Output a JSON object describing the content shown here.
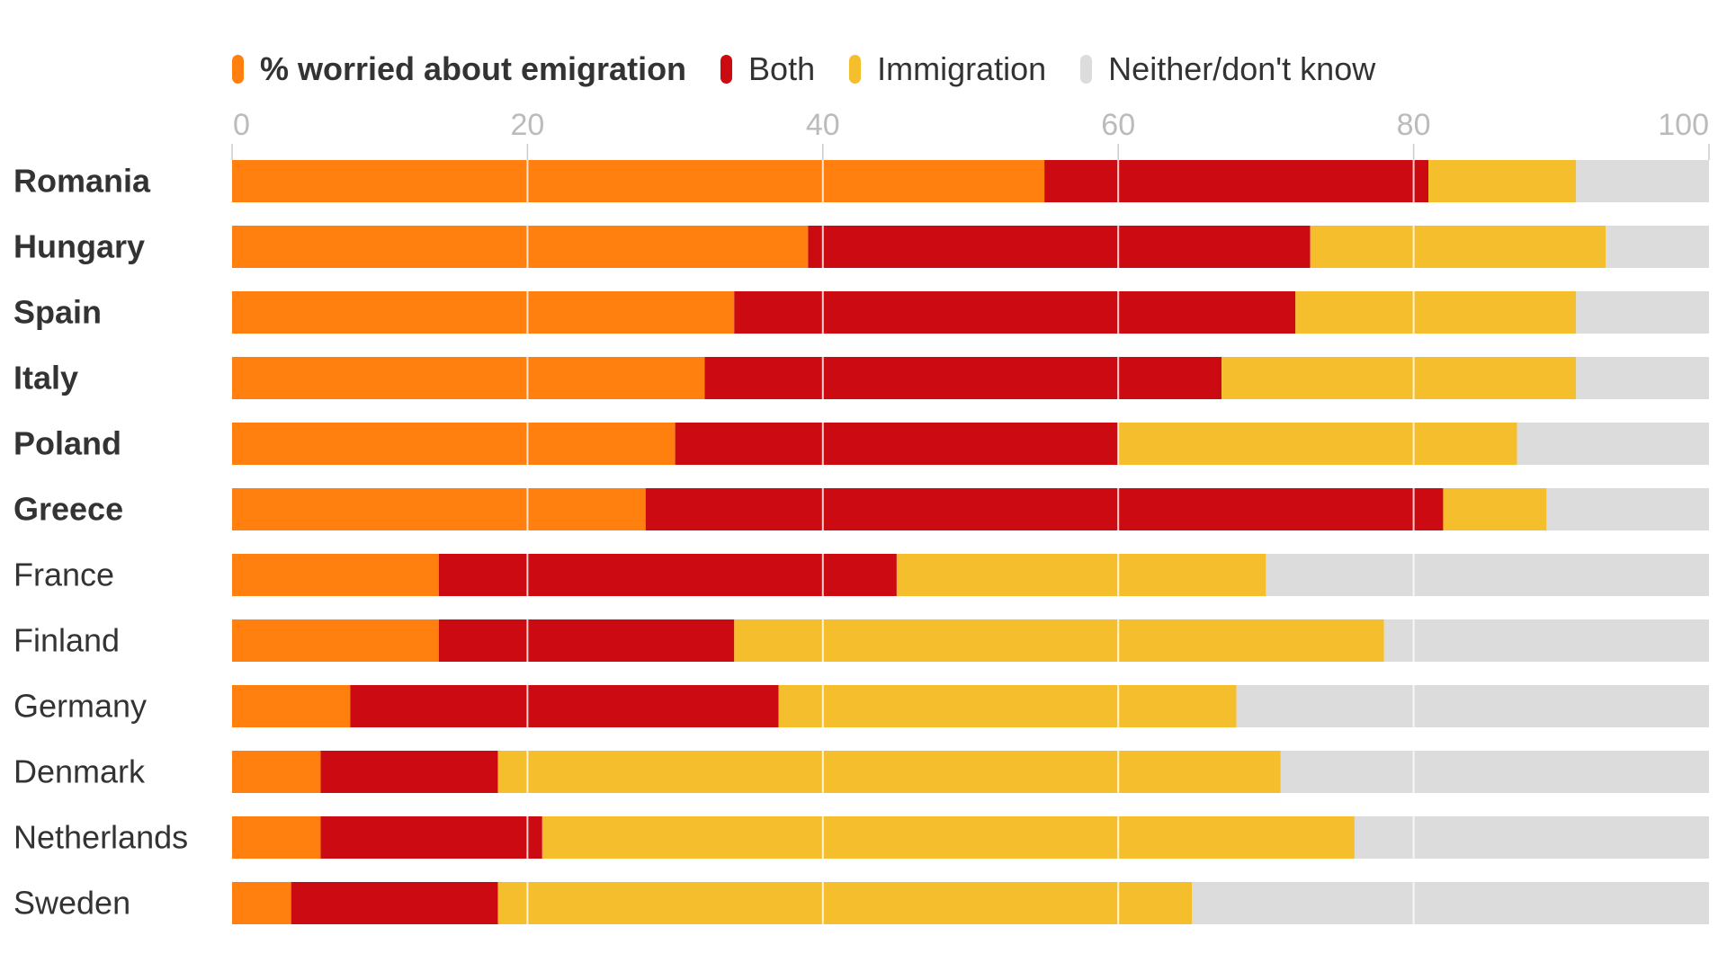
{
  "chart_data": {
    "type": "bar",
    "orientation": "horizontal",
    "stacked": true,
    "title": "",
    "xlabel": "",
    "ylabel": "",
    "xlim": [
      0,
      100
    ],
    "xticks": [
      0,
      20,
      40,
      60,
      80,
      100
    ],
    "grid": true,
    "legend_position": "top",
    "categories": [
      "Romania",
      "Hungary",
      "Spain",
      "Italy",
      "Poland",
      "Greece",
      "France",
      "Finland",
      "Germany",
      "Denmark",
      "Netherlands",
      "Sweden"
    ],
    "bold_categories": [
      "Romania",
      "Hungary",
      "Spain",
      "Italy",
      "Poland",
      "Greece"
    ],
    "series": [
      {
        "name": "% worried about emigration",
        "color": "#ff7f0f",
        "values": [
          55,
          39,
          34,
          32,
          30,
          28,
          14,
          14,
          8,
          6,
          6,
          4
        ]
      },
      {
        "name": "Both",
        "color": "#cc0a11",
        "values": [
          26,
          34,
          38,
          35,
          30,
          54,
          31,
          20,
          29,
          12,
          15,
          14
        ]
      },
      {
        "name": "Immigration",
        "color": "#f5be2c",
        "values": [
          10,
          20,
          19,
          24,
          27,
          7,
          25,
          44,
          31,
          53,
          55,
          47
        ]
      },
      {
        "name": "Neither/don't know",
        "color": "#dcdcdc",
        "values": [
          9,
          7,
          9,
          9,
          13,
          11,
          30,
          22,
          32,
          29,
          24,
          35
        ]
      }
    ]
  }
}
